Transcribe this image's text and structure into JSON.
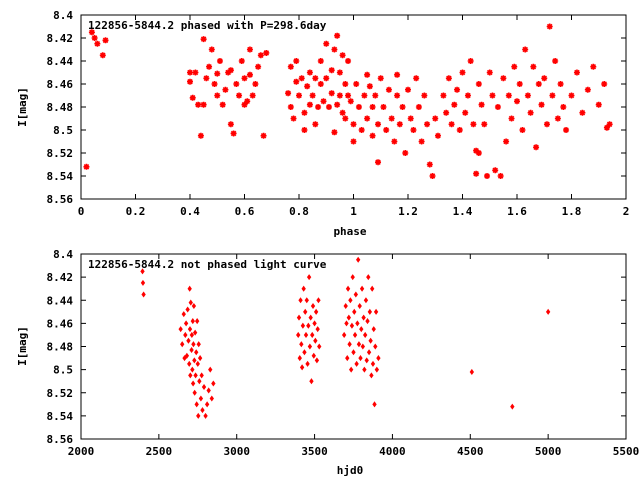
{
  "chart_data": [
    {
      "type": "scatter",
      "title": "122856-5844.2 phased with P=298.6day",
      "xlabel": "phase",
      "ylabel": "I[mag]",
      "xlim": [
        0,
        2
      ],
      "ylim": [
        8.56,
        8.4
      ],
      "y_inverted": true,
      "grid": false,
      "xticks": [
        "0",
        "0.2",
        "0.4",
        "0.6",
        "0.8",
        "1",
        "1.2",
        "1.4",
        "1.6",
        "1.8",
        "2"
      ],
      "yticks": [
        "8.4",
        "8.42",
        "8.44",
        "8.46",
        "8.48",
        "8.5",
        "8.52",
        "8.54",
        "8.56"
      ],
      "marker": "star",
      "color": "#ff0000",
      "points": [
        [
          0.02,
          8.532
        ],
        [
          0.04,
          8.415
        ],
        [
          0.05,
          8.42
        ],
        [
          0.06,
          8.425
        ],
        [
          0.08,
          8.435
        ],
        [
          0.09,
          8.422
        ],
        [
          0.4,
          8.45
        ],
        [
          0.4,
          8.458
        ],
        [
          0.41,
          8.472
        ],
        [
          0.42,
          8.45
        ],
        [
          0.43,
          8.478
        ],
        [
          0.44,
          8.505
        ],
        [
          0.45,
          8.421
        ],
        [
          0.45,
          8.478
        ],
        [
          0.46,
          8.455
        ],
        [
          0.47,
          8.445
        ],
        [
          0.48,
          8.43
        ],
        [
          0.49,
          8.46
        ],
        [
          0.5,
          8.47
        ],
        [
          0.5,
          8.451
        ],
        [
          0.51,
          8.44
        ],
        [
          0.52,
          8.478
        ],
        [
          0.53,
          8.465
        ],
        [
          0.54,
          8.45
        ],
        [
          0.55,
          8.495
        ],
        [
          0.55,
          8.448
        ],
        [
          0.56,
          8.503
        ],
        [
          0.57,
          8.46
        ],
        [
          0.58,
          8.47
        ],
        [
          0.59,
          8.44
        ],
        [
          0.6,
          8.455
        ],
        [
          0.6,
          8.478
        ],
        [
          0.61,
          8.475
        ],
        [
          0.62,
          8.452
        ],
        [
          0.62,
          8.43
        ],
        [
          0.63,
          8.47
        ],
        [
          0.64,
          8.46
        ],
        [
          0.65,
          8.445
        ],
        [
          0.66,
          8.435
        ],
        [
          0.67,
          8.505
        ],
        [
          0.68,
          8.433
        ],
        [
          0.76,
          8.468
        ],
        [
          0.77,
          8.445
        ],
        [
          0.77,
          8.48
        ],
        [
          0.78,
          8.49
        ],
        [
          0.79,
          8.44
        ],
        [
          0.79,
          8.458
        ],
        [
          0.8,
          8.47
        ],
        [
          0.81,
          8.455
        ],
        [
          0.82,
          8.485
        ],
        [
          0.82,
          8.5
        ],
        [
          0.83,
          8.462
        ],
        [
          0.84,
          8.45
        ],
        [
          0.84,
          8.478
        ],
        [
          0.85,
          8.47
        ],
        [
          0.86,
          8.495
        ],
        [
          0.86,
          8.455
        ],
        [
          0.87,
          8.48
        ],
        [
          0.88,
          8.46
        ],
        [
          0.88,
          8.44
        ],
        [
          0.89,
          8.475
        ],
        [
          0.9,
          8.455
        ],
        [
          0.9,
          8.425
        ],
        [
          0.91,
          8.48
        ],
        [
          0.92,
          8.468
        ],
        [
          0.92,
          8.448
        ],
        [
          0.93,
          8.502
        ],
        [
          0.93,
          8.43
        ],
        [
          0.94,
          8.418
        ],
        [
          0.94,
          8.478
        ],
        [
          0.95,
          8.47
        ],
        [
          0.95,
          8.45
        ],
        [
          0.96,
          8.485
        ],
        [
          0.96,
          8.435
        ],
        [
          0.97,
          8.46
        ],
        [
          0.97,
          8.49
        ],
        [
          0.98,
          8.47
        ],
        [
          0.98,
          8.44
        ],
        [
          0.99,
          8.475
        ],
        [
          1.0,
          8.495
        ],
        [
          1.0,
          8.51
        ],
        [
          1.01,
          8.46
        ],
        [
          1.02,
          8.48
        ],
        [
          1.03,
          8.5
        ],
        [
          1.04,
          8.47
        ],
        [
          1.05,
          8.452
        ],
        [
          1.05,
          8.49
        ],
        [
          1.06,
          8.462
        ],
        [
          1.07,
          8.505
        ],
        [
          1.07,
          8.48
        ],
        [
          1.08,
          8.47
        ],
        [
          1.09,
          8.495
        ],
        [
          1.09,
          8.528
        ],
        [
          1.1,
          8.455
        ],
        [
          1.11,
          8.48
        ],
        [
          1.12,
          8.5
        ],
        [
          1.13,
          8.465
        ],
        [
          1.14,
          8.49
        ],
        [
          1.15,
          8.51
        ],
        [
          1.16,
          8.452
        ],
        [
          1.16,
          8.47
        ],
        [
          1.17,
          8.495
        ],
        [
          1.18,
          8.48
        ],
        [
          1.19,
          8.52
        ],
        [
          1.2,
          8.465
        ],
        [
          1.21,
          8.49
        ],
        [
          1.22,
          8.5
        ],
        [
          1.23,
          8.455
        ],
        [
          1.24,
          8.48
        ],
        [
          1.25,
          8.51
        ],
        [
          1.26,
          8.47
        ],
        [
          1.27,
          8.495
        ],
        [
          1.28,
          8.53
        ],
        [
          1.29,
          8.54
        ],
        [
          1.3,
          8.49
        ],
        [
          1.31,
          8.505
        ],
        [
          1.33,
          8.47
        ],
        [
          1.34,
          8.485
        ],
        [
          1.35,
          8.455
        ],
        [
          1.36,
          8.495
        ],
        [
          1.37,
          8.478
        ],
        [
          1.38,
          8.465
        ],
        [
          1.39,
          8.5
        ],
        [
          1.4,
          8.45
        ],
        [
          1.41,
          8.485
        ],
        [
          1.42,
          8.47
        ],
        [
          1.43,
          8.44
        ],
        [
          1.44,
          8.495
        ],
        [
          1.45,
          8.518
        ],
        [
          1.45,
          8.538
        ],
        [
          1.46,
          8.52
        ],
        [
          1.46,
          8.46
        ],
        [
          1.47,
          8.478
        ],
        [
          1.48,
          8.495
        ],
        [
          1.49,
          8.54
        ],
        [
          1.5,
          8.45
        ],
        [
          1.51,
          8.47
        ],
        [
          1.52,
          8.535
        ],
        [
          1.53,
          8.48
        ],
        [
          1.54,
          8.54
        ],
        [
          1.55,
          8.455
        ],
        [
          1.56,
          8.51
        ],
        [
          1.57,
          8.47
        ],
        [
          1.58,
          8.49
        ],
        [
          1.59,
          8.445
        ],
        [
          1.6,
          8.475
        ],
        [
          1.61,
          8.46
        ],
        [
          1.62,
          8.5
        ],
        [
          1.63,
          8.43
        ],
        [
          1.64,
          8.47
        ],
        [
          1.65,
          8.485
        ],
        [
          1.66,
          8.445
        ],
        [
          1.67,
          8.515
        ],
        [
          1.68,
          8.46
        ],
        [
          1.69,
          8.478
        ],
        [
          1.7,
          8.455
        ],
        [
          1.71,
          8.495
        ],
        [
          1.72,
          8.41
        ],
        [
          1.73,
          8.47
        ],
        [
          1.74,
          8.44
        ],
        [
          1.75,
          8.49
        ],
        [
          1.76,
          8.46
        ],
        [
          1.77,
          8.48
        ],
        [
          1.78,
          8.5
        ],
        [
          1.8,
          8.47
        ],
        [
          1.82,
          8.45
        ],
        [
          1.84,
          8.485
        ],
        [
          1.86,
          8.465
        ],
        [
          1.88,
          8.445
        ],
        [
          1.9,
          8.478
        ],
        [
          1.92,
          8.46
        ],
        [
          1.93,
          8.498
        ],
        [
          1.94,
          8.495
        ]
      ]
    },
    {
      "type": "scatter",
      "title": "122856-5844.2 not phased light curve",
      "xlabel": "hjd0",
      "ylabel": "I[mag]",
      "xlim": [
        2000,
        5500
      ],
      "ylim": [
        8.56,
        8.4
      ],
      "y_inverted": true,
      "grid": false,
      "xticks": [
        "2000",
        "2500",
        "3000",
        "3500",
        "4000",
        "4500",
        "5000",
        "5500"
      ],
      "yticks": [
        "8.4",
        "8.42",
        "8.44",
        "8.46",
        "8.48",
        "8.5",
        "8.52",
        "8.54",
        "8.56"
      ],
      "marker": "diamond",
      "color": "#ff0000",
      "points": [
        [
          2395,
          8.415
        ],
        [
          2398,
          8.425
        ],
        [
          2402,
          8.435
        ],
        [
          2640,
          8.465
        ],
        [
          2650,
          8.478
        ],
        [
          2660,
          8.452
        ],
        [
          2665,
          8.49
        ],
        [
          2670,
          8.47
        ],
        [
          2675,
          8.46
        ],
        [
          2680,
          8.488
        ],
        [
          2685,
          8.448
        ],
        [
          2690,
          8.475
        ],
        [
          2695,
          8.495
        ],
        [
          2698,
          8.43
        ],
        [
          2700,
          8.465
        ],
        [
          2702,
          8.505
        ],
        [
          2705,
          8.442
        ],
        [
          2710,
          8.483
        ],
        [
          2712,
          8.47
        ],
        [
          2715,
          8.5
        ],
        [
          2718,
          8.458
        ],
        [
          2720,
          8.512
        ],
        [
          2722,
          8.478
        ],
        [
          2725,
          8.445
        ],
        [
          2728,
          8.492
        ],
        [
          2730,
          8.52
        ],
        [
          2733,
          8.468
        ],
        [
          2736,
          8.505
        ],
        [
          2740,
          8.485
        ],
        [
          2743,
          8.53
        ],
        [
          2746,
          8.458
        ],
        [
          2750,
          8.495
        ],
        [
          2753,
          8.54
        ],
        [
          2756,
          8.478
        ],
        [
          2760,
          8.51
        ],
        [
          2765,
          8.49
        ],
        [
          2770,
          8.525
        ],
        [
          2775,
          8.505
        ],
        [
          2780,
          8.535
        ],
        [
          2790,
          8.515
        ],
        [
          2800,
          8.54
        ],
        [
          2810,
          8.53
        ],
        [
          2820,
          8.518
        ],
        [
          2830,
          8.5
        ],
        [
          2840,
          8.525
        ],
        [
          2850,
          8.512
        ],
        [
          3395,
          8.47
        ],
        [
          3400,
          8.455
        ],
        [
          3405,
          8.49
        ],
        [
          3410,
          8.44
        ],
        [
          3415,
          8.478
        ],
        [
          3420,
          8.498
        ],
        [
          3425,
          8.462
        ],
        [
          3430,
          8.43
        ],
        [
          3435,
          8.485
        ],
        [
          3440,
          8.45
        ],
        [
          3445,
          8.47
        ],
        [
          3450,
          8.44
        ],
        [
          3455,
          8.495
        ],
        [
          3460,
          8.462
        ],
        [
          3465,
          8.42
        ],
        [
          3470,
          8.48
        ],
        [
          3475,
          8.455
        ],
        [
          3480,
          8.51
        ],
        [
          3485,
          8.47
        ],
        [
          3490,
          8.445
        ],
        [
          3495,
          8.488
        ],
        [
          3500,
          8.46
        ],
        [
          3505,
          8.475
        ],
        [
          3510,
          8.45
        ],
        [
          3515,
          8.492
        ],
        [
          3520,
          8.465
        ],
        [
          3525,
          8.44
        ],
        [
          3530,
          8.48
        ],
        [
          3690,
          8.47
        ],
        [
          3700,
          8.445
        ],
        [
          3705,
          8.46
        ],
        [
          3710,
          8.49
        ],
        [
          3715,
          8.43
        ],
        [
          3720,
          8.455
        ],
        [
          3725,
          8.478
        ],
        [
          3730,
          8.44
        ],
        [
          3735,
          8.5
        ],
        [
          3740,
          8.462
        ],
        [
          3745,
          8.42
        ],
        [
          3750,
          8.485
        ],
        [
          3755,
          8.45
        ],
        [
          3760,
          8.47
        ],
        [
          3765,
          8.435
        ],
        [
          3770,
          8.495
        ],
        [
          3775,
          8.46
        ],
        [
          3780,
          8.405
        ],
        [
          3785,
          8.478
        ],
        [
          3790,
          8.445
        ],
        [
          3795,
          8.49
        ],
        [
          3800,
          8.465
        ],
        [
          3805,
          8.43
        ],
        [
          3810,
          8.48
        ],
        [
          3815,
          8.455
        ],
        [
          3820,
          8.5
        ],
        [
          3825,
          8.47
        ],
        [
          3830,
          8.44
        ],
        [
          3835,
          8.492
        ],
        [
          3840,
          8.458
        ],
        [
          3845,
          8.42
        ],
        [
          3850,
          8.485
        ],
        [
          3855,
          8.45
        ],
        [
          3860,
          8.475
        ],
        [
          3865,
          8.505
        ],
        [
          3870,
          8.43
        ],
        [
          3875,
          8.495
        ],
        [
          3880,
          8.465
        ],
        [
          3885,
          8.53
        ],
        [
          3890,
          8.48
        ],
        [
          3895,
          8.45
        ],
        [
          3900,
          8.5
        ],
        [
          3910,
          8.49
        ],
        [
          4510,
          8.502
        ],
        [
          4770,
          8.532
        ],
        [
          5000,
          8.45
        ]
      ]
    }
  ]
}
